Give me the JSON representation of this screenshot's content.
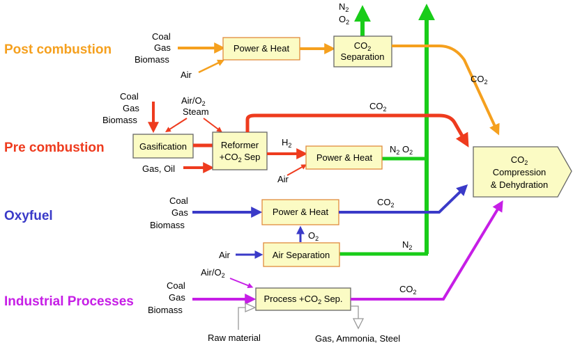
{
  "categories": {
    "post": {
      "label": "Post combustion",
      "color": "#f5a01e"
    },
    "pre": {
      "label": "Pre combustion",
      "color": "#ee3b1e"
    },
    "oxy": {
      "label": "Oxyfuel",
      "color": "#3a3ac8"
    },
    "ind": {
      "label": "Industrial Processes",
      "color": "#c61ee6"
    }
  },
  "colors": {
    "green": "#19cc19",
    "box_fill": "#fbfbc4",
    "box_stroke": "#e08a3c",
    "grey_arrow": "#999999"
  },
  "fuels": {
    "coal": "Coal",
    "gas": "Gas",
    "biomass": "Biomass"
  },
  "inputs": {
    "air": "Air",
    "air_o2_prefix": "Air/O",
    "steam": "Steam",
    "gas_oil": "Gas, Oil",
    "raw_material": "Raw material"
  },
  "boxes": {
    "post_power": "Power & Heat",
    "co2_sep_line1": "CO",
    "co2_sep_line2": "Separation",
    "gasification": "Gasification",
    "reformer_line1": "Reformer",
    "reformer_line2_prefix": "+CO",
    "reformer_line2_suffix": " Sep",
    "pre_power": "Power & Heat",
    "oxy_power": "Power & Heat",
    "air_separation": "Air Separation",
    "process_prefix": "Process +CO",
    "process_suffix": " Sep.",
    "comp_line1": "CO",
    "comp_line2": "Compression",
    "comp_line3": "& Dehydration"
  },
  "streams": {
    "co2": "CO",
    "n2": "N",
    "o2": "O",
    "h2": "H",
    "sub2": "2"
  },
  "outputs": {
    "gas_ammonia_steel": "Gas, Ammonia, Steel"
  }
}
